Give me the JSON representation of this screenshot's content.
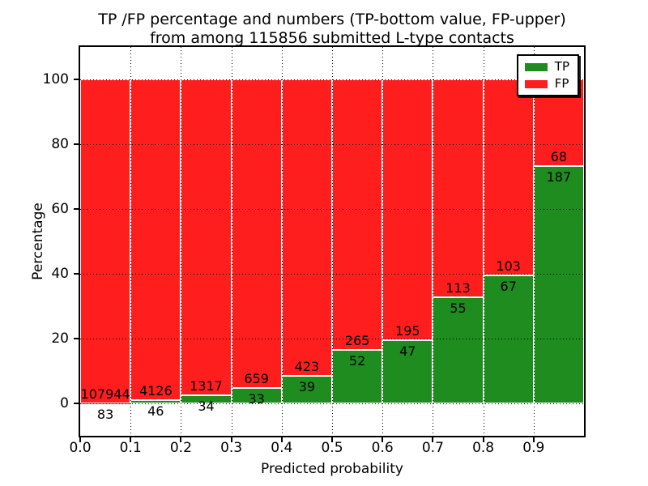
{
  "title": {
    "line1": "TP /FP percentage and numbers (TP-bottom value, FP-upper)",
    "line2": "from among 115856 submitted L-type contacts"
  },
  "chart_data": {
    "type": "bar",
    "stacked": true,
    "title": "TP /FP percentage and numbers (TP-bottom value, FP-upper) from among 115856 submitted L-type contacts",
    "xlabel": "Predicted probability",
    "ylabel": "Percentage",
    "xlim": [
      0.0,
      1.0
    ],
    "ylim": [
      -10,
      110
    ],
    "grid": "dotted",
    "legend_position": "upper-right",
    "bin_width": 0.1,
    "bin_starts": [
      0.0,
      0.1,
      0.2,
      0.3,
      0.4,
      0.5,
      0.6,
      0.7,
      0.8,
      0.9
    ],
    "xtick_labels": [
      "0.0",
      "0.1",
      "0.2",
      "0.3",
      "0.4",
      "0.5",
      "0.6",
      "0.7",
      "0.8",
      "0.9"
    ],
    "ytick_values": [
      0,
      20,
      40,
      60,
      80,
      100
    ],
    "series": [
      {
        "name": "TP",
        "color": "#1e8c1e",
        "counts": [
          83,
          46,
          34,
          33,
          39,
          52,
          47,
          55,
          67,
          187
        ]
      },
      {
        "name": "FP",
        "color": "#ff1e1e",
        "counts": [
          107944,
          4126,
          1317,
          659,
          423,
          265,
          195,
          113,
          103,
          68
        ]
      }
    ],
    "tp_percent_of_bin": [
      0.08,
      1.1,
      2.52,
      4.77,
      8.44,
      16.4,
      19.42,
      32.74,
      39.41,
      73.33
    ],
    "total_contacts": 115856
  }
}
